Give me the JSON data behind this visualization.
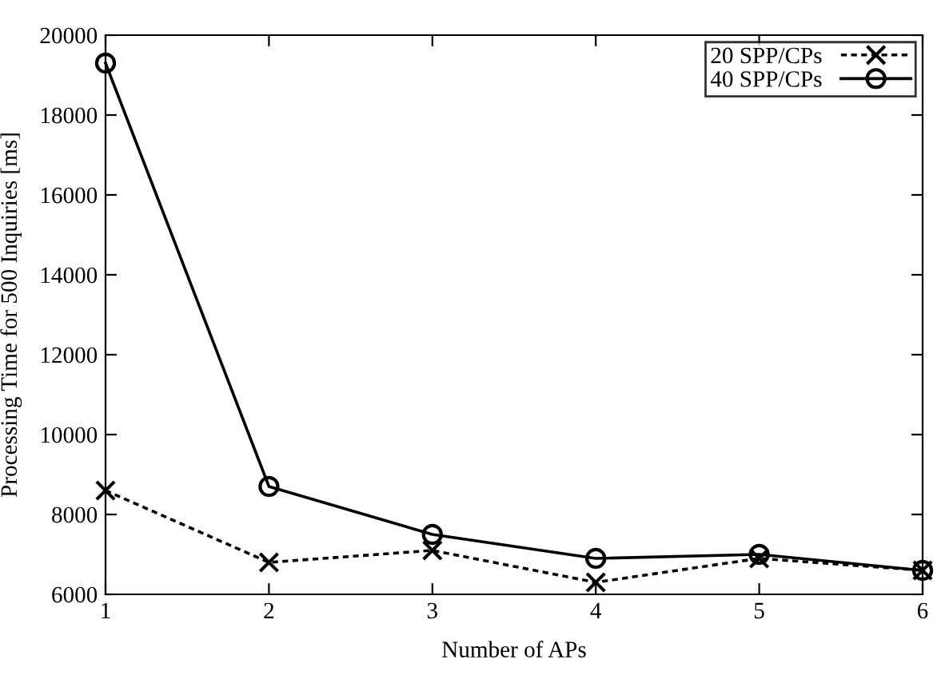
{
  "chart_data": {
    "type": "line",
    "xlabel": "Number of APs",
    "ylabel": "Processing Time for 500 Inquiries [ms]",
    "x": [
      1,
      2,
      3,
      4,
      5,
      6
    ],
    "series": [
      {
        "name": "20 SPP/CPs",
        "color": "#000000",
        "marker": "cross",
        "line_style": "dashed",
        "values": [
          8600,
          6800,
          7100,
          6300,
          6900,
          6600
        ]
      },
      {
        "name": "40 SPP/CPs",
        "color": "#000000",
        "marker": "circle",
        "line_style": "solid",
        "values": [
          19300,
          8700,
          7500,
          6900,
          7000,
          6600
        ]
      }
    ],
    "xlim": [
      1,
      6
    ],
    "xticks": [
      1,
      2,
      3,
      4,
      5,
      6
    ],
    "ylim": [
      6000,
      20000
    ],
    "yticks": [
      6000,
      8000,
      10000,
      12000,
      14000,
      16000,
      18000,
      20000
    ],
    "grid": false,
    "legend": "top right"
  }
}
